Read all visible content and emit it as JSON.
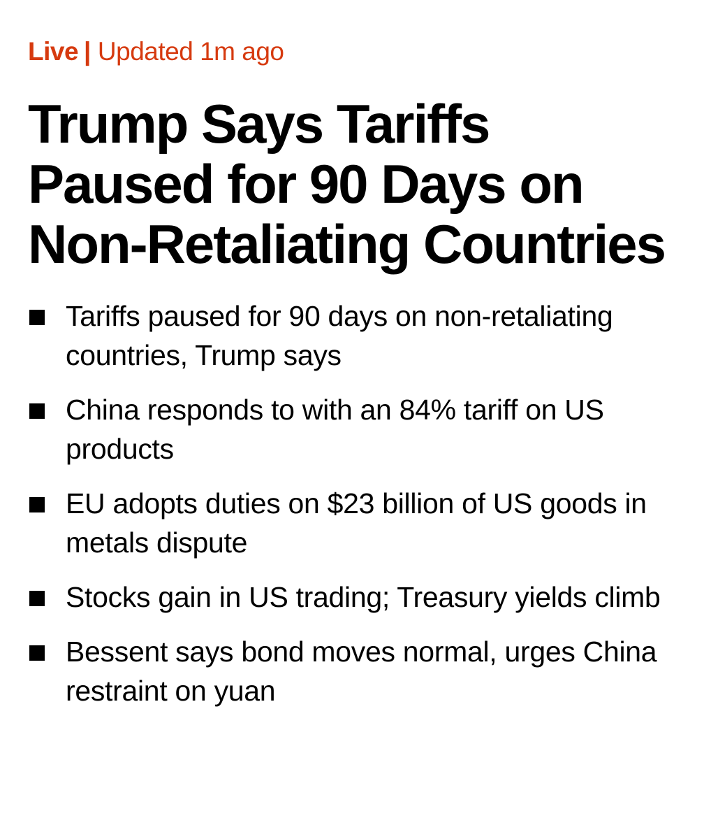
{
  "status": {
    "live_label": "Live",
    "separator": "|",
    "updated_text": "Updated 1m ago",
    "accent_color": "#d63a0f"
  },
  "headline": "Trump Says Tariffs Paused for 90 Days on Non-Retaliating Countries",
  "bullets": [
    "Tariffs paused for 90 days on non-retaliating countries, Trump says",
    "China responds to with an 84% tariff on US products",
    "EU adopts duties on $23 billion of US goods in metals dispute",
    "Stocks gain in US trading; Treasury yields climb",
    "Bessent says bond moves normal, urges China restraint on yuan"
  ],
  "bullet_icon": "black-square-icon"
}
